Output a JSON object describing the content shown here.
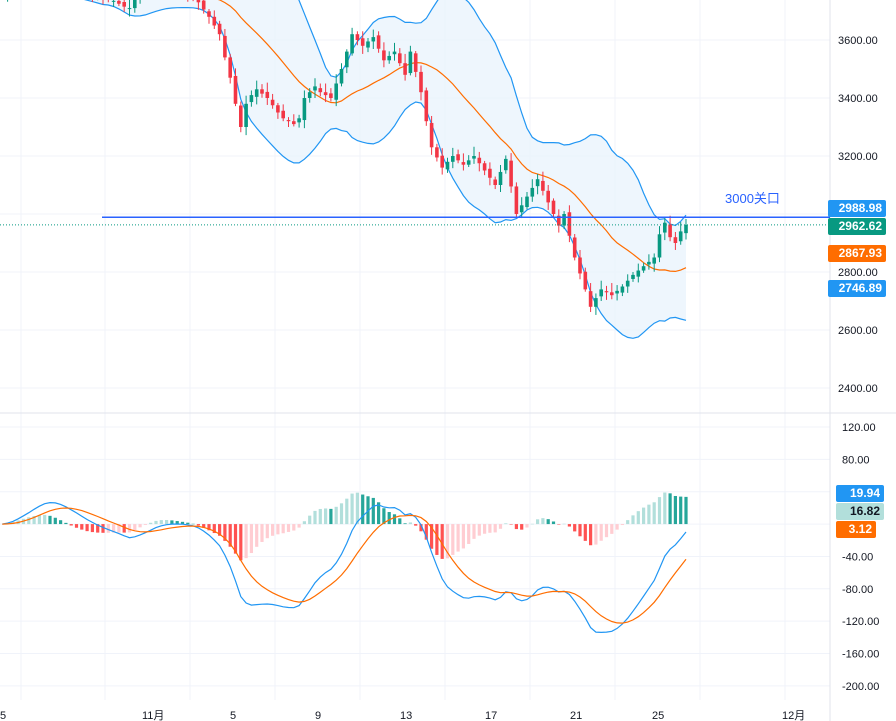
{
  "chart_data": [
    {
      "type": "candlestick",
      "title": "",
      "close": [
        3750,
        3765,
        3780,
        3800,
        3815,
        3830,
        3845,
        3855,
        3860,
        3850,
        3835,
        3820,
        3805,
        3790,
        3780,
        3770,
        3760,
        3755,
        3750,
        3745,
        3740,
        3735,
        3725,
        3715,
        3710,
        3745,
        3760,
        3770,
        3780,
        3790,
        3785,
        3780,
        3775,
        3770,
        3765,
        3760,
        3750,
        3730,
        3705,
        3680,
        3650,
        3620,
        3540,
        3470,
        3380,
        3300,
        3380,
        3410,
        3430,
        3415,
        3400,
        3375,
        3350,
        3330,
        3320,
        3310,
        3330,
        3400,
        3420,
        3440,
        3420,
        3410,
        3400,
        3450,
        3500,
        3560,
        3620,
        3600,
        3580,
        3595,
        3610,
        3570,
        3530,
        3545,
        3560,
        3520,
        3480,
        3560,
        3490,
        3420,
        3320,
        3230,
        3195,
        3160,
        3180,
        3200,
        3185,
        3170,
        3185,
        3200,
        3175,
        3150,
        3125,
        3100,
        3145,
        3190,
        3095,
        3000,
        3030,
        3060,
        3090,
        3120,
        3080,
        3040,
        3000,
        2960,
        3000,
        2925,
        2850,
        2795,
        2740,
        2680,
        2710,
        2740,
        2730,
        2720,
        2735,
        2750,
        2770,
        2790,
        2805,
        2820,
        2835,
        2850,
        2930,
        2970,
        2920,
        2900,
        2940,
        2962.62
      ],
      "indicators": [
        "Bollinger Bands (20)"
      ],
      "ylim": [
        2340,
        3738
      ],
      "y_ticks": [
        "3600.00",
        "3400.00",
        "3200.00",
        "2800.00",
        "2600.00",
        "2400.00"
      ],
      "x_ticks": [
        "5",
        "11月",
        "5",
        "9",
        "13",
        "17",
        "21",
        "25",
        "12月"
      ],
      "horizontal_line": {
        "value": 2988.98,
        "label": "3000关口"
      },
      "price_labels": [
        {
          "value": "2988.98",
          "color": "#2196f3"
        },
        {
          "value": "2962.62",
          "color": "#089981"
        },
        {
          "value": "2867.93",
          "color": "#ff6d00"
        },
        {
          "value": "2746.89",
          "color": "#2196f3"
        }
      ],
      "colors": {
        "up": "#089981",
        "down": "#f23645",
        "band": "#2196f3",
        "basis": "#ff6d00",
        "band_fill": "#eaf4fd"
      }
    },
    {
      "type": "macd",
      "ylim": [
        -208,
        130
      ],
      "y_ticks": [
        "120.00",
        "80.00",
        "-40.00",
        "-80.00",
        "-120.00",
        "-160.00",
        "-200.00"
      ],
      "value_labels": [
        {
          "value": "19.94",
          "color": "#2196f3",
          "text": "#fff"
        },
        {
          "value": "16.82",
          "color": "#b2dfdb",
          "text": "#131722"
        },
        {
          "value": "3.12",
          "color": "#ff6d00",
          "text": "#fff"
        }
      ],
      "colors": {
        "macd": "#2196f3",
        "signal": "#ff6d00",
        "hist_up": "#26a69a",
        "hist_up_light": "#b2dfdb",
        "hist_down": "#ff5252",
        "hist_down_light": "#ffcdd2"
      }
    }
  ]
}
